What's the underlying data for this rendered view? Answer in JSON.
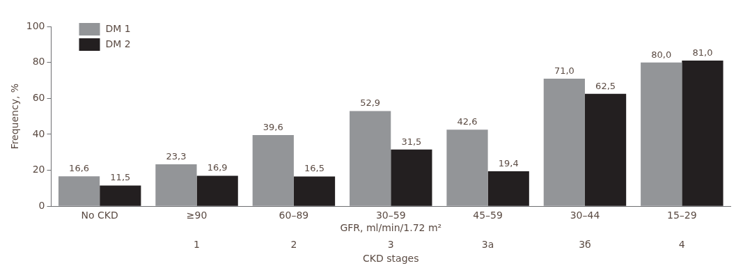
{
  "chart_data": {
    "type": "bar",
    "xlabel": "GFR, ml/min/1.72 m²",
    "ylabel": "Frequency, %",
    "categories": [
      "No CKD",
      "≥90",
      "60–89",
      "30–59",
      "45–59",
      "30–44",
      "15–29"
    ],
    "series": [
      {
        "name": "DM 1",
        "color": "#939598",
        "values": [
          16.6,
          23.3,
          39.6,
          52.9,
          42.6,
          71.0,
          80.0
        ],
        "value_labels": [
          "16,6",
          "23,3",
          "39,6",
          "52,9",
          "42,6",
          "71,0",
          "80,0"
        ]
      },
      {
        "name": "DM 2",
        "color": "#231f20",
        "values": [
          11.5,
          16.9,
          16.5,
          31.5,
          19.4,
          62.5,
          81.0
        ],
        "value_labels": [
          "11,5",
          "16,9",
          "16,5",
          "31,5",
          "19,4",
          "62,5",
          "81,0"
        ]
      }
    ],
    "ylim": [
      0,
      100
    ],
    "yticks": [
      0,
      20,
      40,
      60,
      80,
      100
    ],
    "legend": "top left",
    "annotations": [
      "1",
      "2",
      "3",
      "3а",
      "3б",
      "4",
      "CKD stages"
    ]
  }
}
